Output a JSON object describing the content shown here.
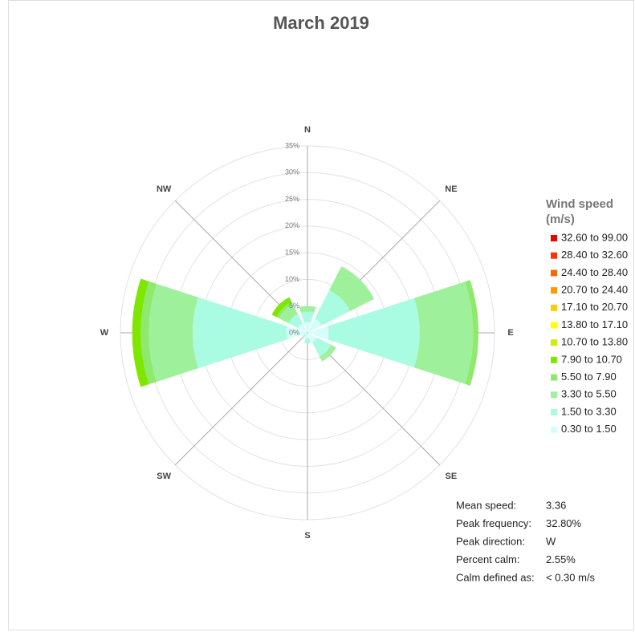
{
  "chart_data": {
    "type": "windrose",
    "title": "March 2019",
    "directions": [
      "N",
      "NE",
      "E",
      "SE",
      "S",
      "SW",
      "W",
      "NW"
    ],
    "rlim": [
      0,
      35
    ],
    "rticks": [
      {
        "value": 0,
        "label": "0%"
      },
      {
        "value": 5,
        "label": "5%"
      },
      {
        "value": 10,
        "label": "10%"
      },
      {
        "value": 15,
        "label": "15%"
      },
      {
        "value": 20,
        "label": "20%"
      },
      {
        "value": 25,
        "label": "25%"
      },
      {
        "value": 30,
        "label": "30%"
      },
      {
        "value": 35,
        "label": "35%"
      }
    ],
    "legend_title": [
      "Wind speed",
      "(m/s)"
    ],
    "series": [
      {
        "name": "0.30 to 1.50",
        "color": "#d4fdfb",
        "values": [
          2,
          3,
          4,
          2,
          1,
          0.5,
          4,
          2
        ]
      },
      {
        "name": "1.50 to 3.30",
        "color": "#a9fbe1",
        "values": [
          2,
          6,
          17,
          3,
          1,
          0.5,
          17.5,
          2
        ]
      },
      {
        "name": "3.30 to 5.50",
        "color": "#9ef09a",
        "values": [
          1,
          5,
          10,
          1,
          0,
          0,
          8.2,
          2
        ]
      },
      {
        "name": "5.50 to 7.90",
        "color": "#8ee96c",
        "values": [
          0,
          0,
          1,
          0,
          0,
          0,
          1.5,
          0.5
        ]
      },
      {
        "name": "7.90 to 10.70",
        "color": "#7fe600",
        "values": [
          0,
          0,
          0,
          0,
          0,
          0,
          1.6,
          1
        ]
      },
      {
        "name": "10.70 to 13.80",
        "color": "#c8ee00",
        "values": [
          0,
          0,
          0,
          0,
          0,
          0,
          0,
          0
        ]
      },
      {
        "name": "13.80 to 17.10",
        "color": "#ffff00",
        "values": [
          0,
          0,
          0,
          0,
          0,
          0,
          0,
          0
        ]
      },
      {
        "name": "17.10 to 20.70",
        "color": "#ffcc00",
        "values": [
          0,
          0,
          0,
          0,
          0,
          0,
          0,
          0
        ]
      },
      {
        "name": "20.70 to 24.40",
        "color": "#ff9900",
        "values": [
          0,
          0,
          0,
          0,
          0,
          0,
          0,
          0
        ]
      },
      {
        "name": "24.40 to 28.40",
        "color": "#ff6600",
        "values": [
          0,
          0,
          0,
          0,
          0,
          0,
          0,
          0
        ]
      },
      {
        "name": "28.40 to 32.60",
        "color": "#ff3300",
        "values": [
          0,
          0,
          0,
          0,
          0,
          0,
          0,
          0
        ]
      },
      {
        "name": "32.60 to 99.00",
        "color": "#ee0000",
        "values": [
          0,
          0,
          0,
          0,
          0,
          0,
          0,
          0
        ]
      }
    ],
    "stats": [
      {
        "label": "Mean speed:",
        "value": "3.36"
      },
      {
        "label": "Peak frequency:",
        "value": "32.80%"
      },
      {
        "label": "Peak direction:",
        "value": "W"
      },
      {
        "label": "Percent calm:",
        "value": "2.55%"
      },
      {
        "label": "Calm defined as:",
        "value": "< 0.30 m/s"
      }
    ]
  }
}
